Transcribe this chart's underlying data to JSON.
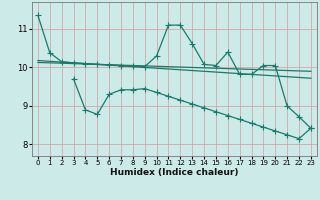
{
  "bg_color": "#cceae8",
  "line_color": "#1a7a6a",
  "xlabel": "Humidex (Indice chaleur)",
  "ylim": [
    7.7,
    11.7
  ],
  "xlim": [
    -0.5,
    23.5
  ],
  "yticks": [
    8,
    9,
    10,
    11
  ],
  "xticks": [
    0,
    1,
    2,
    3,
    4,
    5,
    6,
    7,
    8,
    9,
    10,
    11,
    12,
    13,
    14,
    15,
    16,
    17,
    18,
    19,
    20,
    21,
    22,
    23
  ],
  "line1_x": [
    0,
    1,
    2,
    3,
    4,
    5,
    6,
    7,
    8,
    9,
    10,
    11,
    12,
    13,
    14,
    15,
    16,
    17,
    18,
    19,
    20,
    21,
    22,
    23
  ],
  "line1_y": [
    11.35,
    10.38,
    10.15,
    10.12,
    10.1,
    10.08,
    10.07,
    10.05,
    10.04,
    10.02,
    10.3,
    11.1,
    11.1,
    10.62,
    10.08,
    10.05,
    10.4,
    9.82,
    9.82,
    10.05,
    10.05,
    9.0,
    8.72,
    8.42
  ],
  "line2_x": [
    0,
    1,
    2,
    3,
    4,
    5,
    6,
    7,
    8,
    9,
    10,
    11,
    12,
    13,
    14,
    15,
    16,
    17,
    18,
    19,
    20,
    21,
    22,
    23
  ],
  "line2_y": [
    10.18,
    10.16,
    10.14,
    10.12,
    10.1,
    10.08,
    10.06,
    10.04,
    10.02,
    10.0,
    9.98,
    9.96,
    9.94,
    9.92,
    9.9,
    9.88,
    9.86,
    9.84,
    9.82,
    9.8,
    9.78,
    9.76,
    9.74,
    9.72
  ],
  "line3_x": [
    0,
    1,
    2,
    3,
    4,
    5,
    6,
    7,
    8,
    9,
    10,
    11,
    12,
    13,
    14,
    15,
    16,
    17,
    18,
    19,
    20,
    21,
    22,
    23
  ],
  "line3_y": [
    10.13,
    10.12,
    10.11,
    10.1,
    10.09,
    10.08,
    10.07,
    10.06,
    10.05,
    10.04,
    10.03,
    10.02,
    10.01,
    10.0,
    9.99,
    9.98,
    9.97,
    9.96,
    9.95,
    9.94,
    9.93,
    9.92,
    9.91,
    9.9
  ],
  "line4_x": [
    3,
    4,
    5,
    6,
    7,
    8,
    9,
    10,
    11,
    12,
    13,
    14,
    15,
    16,
    17,
    18,
    19,
    20,
    21,
    22,
    23
  ],
  "line4_y": [
    9.7,
    8.9,
    8.78,
    9.3,
    9.42,
    9.42,
    9.45,
    9.35,
    9.25,
    9.15,
    9.05,
    8.95,
    8.85,
    8.75,
    8.65,
    8.55,
    8.45,
    8.35,
    8.25,
    8.15,
    8.42
  ]
}
